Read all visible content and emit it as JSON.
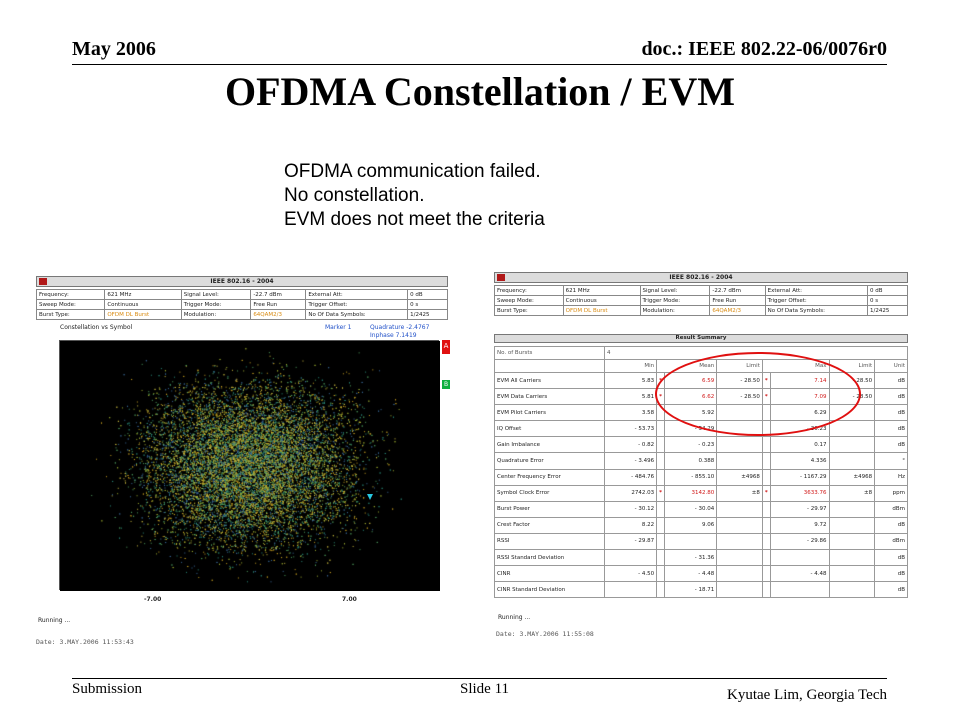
{
  "header": {
    "date": "May 2006",
    "doc": "doc.: IEEE 802.22-06/0076r0"
  },
  "title": "OFDMA Constellation / EVM",
  "notes": [
    "OFDMA communication failed.",
    "No constellation.",
    "EVM does not meet the criteria"
  ],
  "footer": {
    "left": "Submission",
    "center": "Slide 11",
    "right": "Kyutae Lim, Georgia Tech"
  },
  "instrument": {
    "standard": "IEEE 802.16 - 2004",
    "params": [
      [
        "Frequency:",
        "621 MHz",
        "Signal Level:",
        "-22.7 dBm",
        "External Att:",
        "0 dB"
      ],
      [
        "Sweep Mode:",
        "Continuous",
        "Trigger Mode:",
        "Free Run",
        "Trigger Offset:",
        "0 s"
      ],
      [
        "Burst Type:",
        "OFDM DL Burst",
        "Modulation:",
        "64QAM2/3",
        "No Of Data Symbols:",
        "1/2425"
      ]
    ]
  },
  "left_screen": {
    "plot_title": "Constellation vs Symbol",
    "marker_label": "Marker 1",
    "marker_q": "Quadrature   -2.4767",
    "marker_i": "Inphase       7.1419",
    "marker_a": "A",
    "marker_b": "B",
    "xmin": "-7.00",
    "xmax": "7.00",
    "running": "Running ...",
    "date": "Date: 3.MAY.2006  11:53:43"
  },
  "right_screen": {
    "summary_title": "Result Summary",
    "bursts_label": "No. of Bursts",
    "bursts_value": "4",
    "columns": [
      "Min",
      "Mean",
      "Limit",
      "Max",
      "Limit",
      "Unit"
    ],
    "rows": [
      {
        "label": "EVM All Carriers",
        "min": "5.83",
        "mean_star": "*",
        "mean": "6.59",
        "limit1": "- 28.50",
        "max_star": "*",
        "max": "7.14",
        "limit2": "- 28.50",
        "unit": "dB"
      },
      {
        "label": "EVM Data Carriers",
        "min": "5.81",
        "mean_star": "*",
        "mean": "6.62",
        "limit1": "- 28.50",
        "max_star": "*",
        "max": "7.09",
        "limit2": "- 28.50",
        "unit": "dB"
      },
      {
        "label": "EVM Pilot Carriers",
        "min": "3.58",
        "mean_star": "",
        "mean": "5.92",
        "limit1": "",
        "max_star": "",
        "max": "6.29",
        "limit2": "",
        "unit": "dB"
      },
      {
        "label": "IQ Offset",
        "min": "- 53.73",
        "mean_star": "",
        "mean": "- 34.29",
        "limit1": "",
        "max_star": "",
        "max": "- 30.23",
        "limit2": "",
        "unit": "dB"
      },
      {
        "label": "Gain Imbalance",
        "min": "- 0.82",
        "mean_star": "",
        "mean": "- 0.23",
        "limit1": "",
        "max_star": "",
        "max": "0.17",
        "limit2": "",
        "unit": "dB"
      },
      {
        "label": "Quadrature Error",
        "min": "- 3.496",
        "mean_star": "",
        "mean": "0.388",
        "limit1": "",
        "max_star": "",
        "max": "4.336",
        "limit2": "",
        "unit": "°"
      },
      {
        "label": "Center Frequency Error",
        "min": "- 484.76",
        "mean_star": "",
        "mean": "- 855.10",
        "limit1": "±4968",
        "max_star": "",
        "max": "- 1167.29",
        "limit2": "±4968",
        "unit": "Hz"
      },
      {
        "label": "Symbol Clock Error",
        "min": "2742.03",
        "mean_star": "*",
        "mean": "3142.80",
        "limit1": "±8",
        "max_star": "*",
        "max": "3633.76",
        "limit2": "±8",
        "unit": "ppm"
      },
      {
        "label": "Burst Power",
        "min": "- 30.12",
        "mean_star": "",
        "mean": "- 30.04",
        "limit1": "",
        "max_star": "",
        "max": "- 29.97",
        "limit2": "",
        "unit": "dBm"
      },
      {
        "label": "Crest Factor",
        "min": "8.22",
        "mean_star": "",
        "mean": "9.06",
        "limit1": "",
        "max_star": "",
        "max": "9.72",
        "limit2": "",
        "unit": "dB"
      },
      {
        "label": "RSSI",
        "min": "- 29.87",
        "mean_star": "",
        "mean": "",
        "limit1": "",
        "max_star": "",
        "max": "- 29.86",
        "limit2": "",
        "unit": "dBm"
      },
      {
        "label": "RSSI Standard Deviation",
        "min": "",
        "mean_star": "",
        "mean": "- 31.36",
        "limit1": "",
        "max_star": "",
        "max": "",
        "limit2": "",
        "unit": "dB"
      },
      {
        "label": "CINR",
        "min": "- 4.50",
        "mean_star": "",
        "mean": "- 4.48",
        "limit1": "",
        "max_star": "",
        "max": "- 4.48",
        "limit2": "",
        "unit": "dB"
      },
      {
        "label": "CINR Standard Deviation",
        "min": "",
        "mean_star": "",
        "mean": "- 18.71",
        "limit1": "",
        "max_star": "",
        "max": "",
        "limit2": "",
        "unit": "dB"
      }
    ],
    "running": "Running ...",
    "date": "Date: 3.MAY.2006  11:55:08"
  }
}
